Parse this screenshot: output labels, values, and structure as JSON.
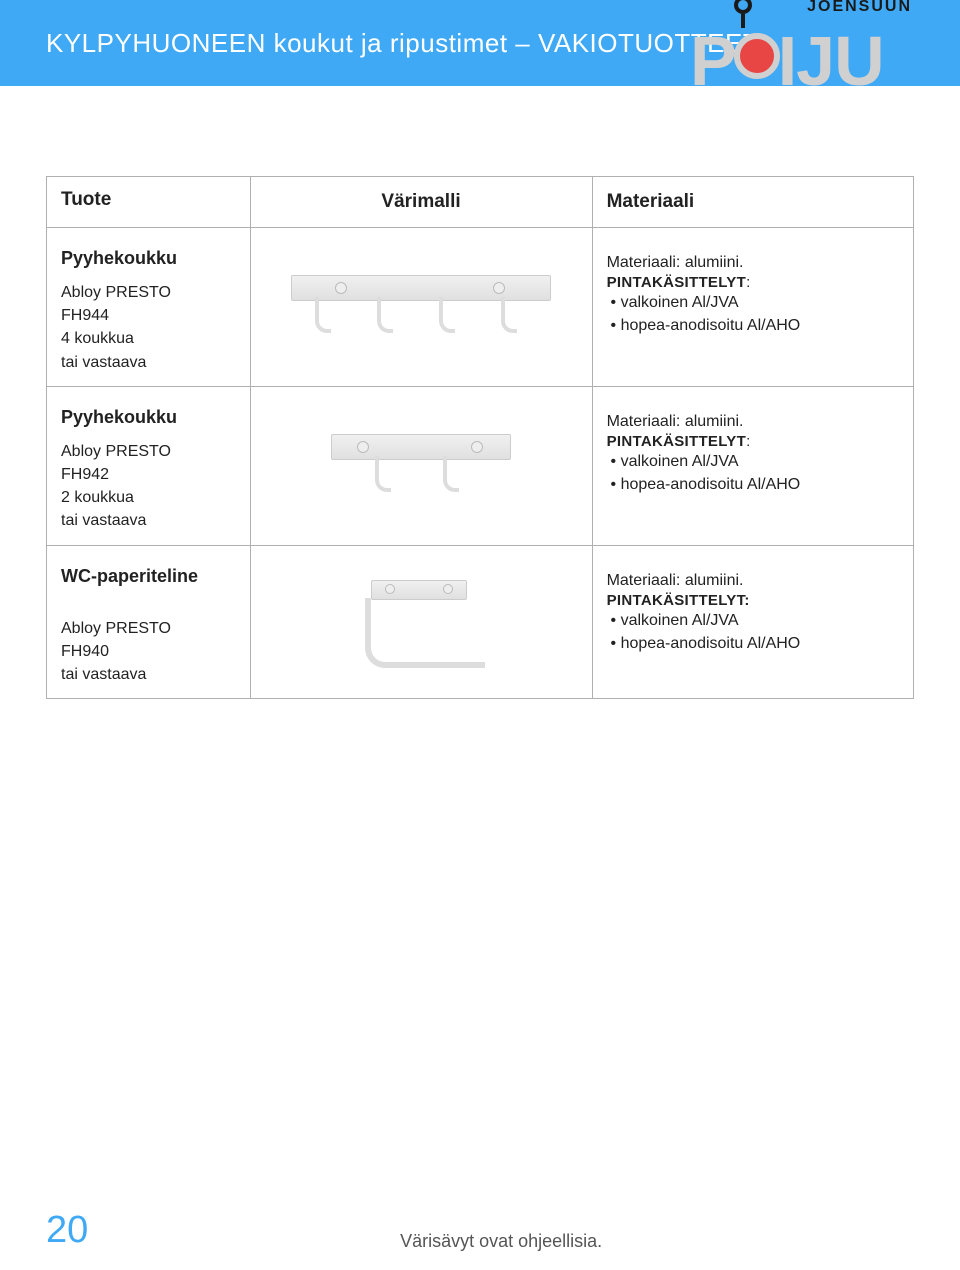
{
  "header": {
    "title": "KYLPYHUONEEN koukut ja ripustimet – VAKIOTUOTTEET",
    "bg_color": "#3fa9f5"
  },
  "logo": {
    "city": "JOENSUUN",
    "text_before_o": "P",
    "text_after_o": "IJU",
    "letters_color": "#d0d0d0",
    "o_color": "#e84545"
  },
  "table": {
    "columns": {
      "c1": "Tuote",
      "c2": "Värimalli",
      "c3": "Materiaali"
    },
    "border_color": "#b0b0b0",
    "rows": [
      {
        "product_title": "Pyyhekoukku",
        "product_lines": [
          "Abloy PRESTO",
          "FH944",
          "4 koukkua",
          "tai vastaava"
        ],
        "illustration": "hooks-4",
        "material_line": "Materiaali: alumiini.",
        "finish_label": "PINTAKÄSITTELYT",
        "finish_colon": ":",
        "bullets": [
          "valkoinen Al/JVA",
          "hopea-anodisoitu Al/AHO"
        ]
      },
      {
        "product_title": "Pyyhekoukku",
        "product_lines": [
          "Abloy PRESTO",
          "FH942",
          "2 koukkua",
          "tai vastaava"
        ],
        "illustration": "hooks-2",
        "material_line": "Materiaali: alumiini.",
        "finish_label": "PINTAKÄSITTELYT",
        "finish_colon": ":",
        "bullets": [
          "valkoinen Al/JVA",
          "hopea-anodisoitu Al/AHO"
        ]
      },
      {
        "product_title": "WC-paperiteline",
        "product_lines": [
          "Abloy PRESTO",
          "FH940",
          "tai vastaava"
        ],
        "illustration": "toilet-paper-holder",
        "material_line": "Materiaali: alumiini.",
        "finish_label": "PINTAKÄSITTELYT:",
        "finish_colon": "",
        "bullets": [
          "valkoinen Al/JVA",
          "hopea-anodisoitu Al/AHO"
        ]
      }
    ]
  },
  "footer": {
    "page_number": "20",
    "note": "Värisävyt ovat ohjeellisia.",
    "page_number_color": "#3fa9f5"
  }
}
